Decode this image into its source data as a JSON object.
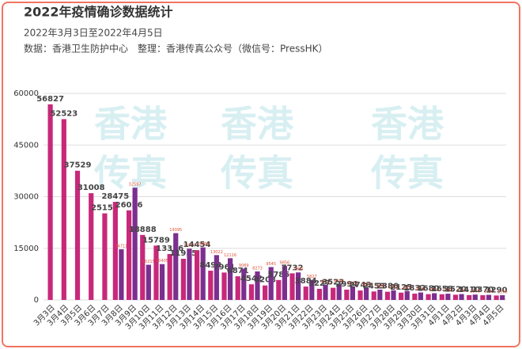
{
  "chart_data": {
    "type": "bar",
    "title": "2022年疫情确诊数据统计",
    "subtitle": "2022年3月3日至2022年4月5日",
    "source": "数据：香港卫生防护中心　整理：香港传真公众号（微信号：PressHK）",
    "watermark": [
      "香港",
      "传真"
    ],
    "categories": [
      "3月3日",
      "3月4日",
      "3月5日",
      "3月6日",
      "3月7日",
      "3月8日",
      "3月9日",
      "3月10日",
      "3月11日",
      "3月12日",
      "3月13日",
      "3月14日",
      "3月15日",
      "3月16日",
      "3月17日",
      "3月18日",
      "3月19日",
      "3月20日",
      "3月21日",
      "3月22日",
      "3月23日",
      "3月24日",
      "3月25日",
      "3月26日",
      "3月27日",
      "3月28日",
      "3月29日",
      "3月30日",
      "3月31日",
      "4月1日",
      "4月2日",
      "4月3日",
      "4月4日",
      "4月5日"
    ],
    "series": [
      {
        "color": "#c8287a",
        "values": [
          56827,
          52523,
          37529,
          31008,
          25150,
          28475,
          26026,
          18888,
          15789,
          13336,
          11955,
          14454,
          8492,
          7961,
          6871,
          4542,
          4208,
          5785,
          7732,
          3884,
          3227,
          3523,
          2994,
          2743,
          2453,
          2386,
          2125,
          1832,
          1680,
          1658,
          1520,
          1410,
          1370,
          1290
        ]
      },
      {
        "color": "#7b2f8e",
        "values": [
          null,
          null,
          null,
          null,
          null,
          14711,
          32597,
          10215,
          10405,
          19395,
          14889,
          15264,
          13022,
          12116,
          9069,
          8273,
          9545,
          9856,
          7990,
          5827,
          4361,
          4486,
          3925,
          3516,
          2985,
          2789,
          2600,
          2165,
          1950,
          1805,
          1700,
          1560,
          1480,
          1370
        ]
      }
    ],
    "ylim": [
      0,
      60000
    ],
    "yticks": [
      0,
      15000,
      30000,
      45000,
      60000
    ],
    "grid": true
  }
}
